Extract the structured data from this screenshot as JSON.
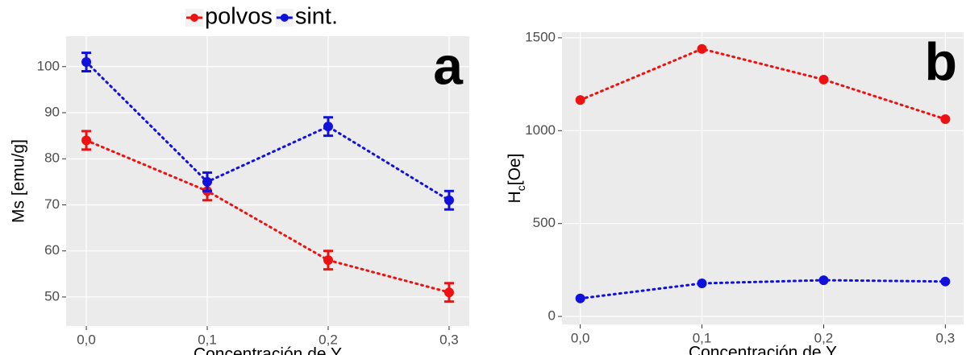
{
  "chart_data": [
    {
      "type": "line",
      "annotation": "a",
      "xlabel": "Concentración de Y",
      "ylabel": "Ms [emu/g]",
      "x": [
        0,
        0.1,
        0.2,
        0.3
      ],
      "series": [
        {
          "name": "polvos",
          "color": "#ee1111",
          "values": [
            84,
            73,
            58,
            51
          ],
          "errors": [
            2,
            2,
            2,
            2
          ]
        },
        {
          "name": "sint.",
          "color": "#1111dd",
          "values": [
            101,
            75,
            87,
            71
          ],
          "errors": [
            2,
            2,
            2,
            2
          ]
        }
      ],
      "xlim": [
        -0.0167,
        0.3167
      ],
      "xticks": [
        {
          "value": 0,
          "label": "0,0"
        },
        {
          "value": 0.1,
          "label": "0,1"
        },
        {
          "value": 0.2,
          "label": "0,2"
        },
        {
          "value": 0.3,
          "label": "0,3"
        }
      ],
      "ylim": [
        43.7,
        106.6
      ],
      "yticks": [
        50,
        60,
        70,
        80,
        90,
        100
      ],
      "grid": true
    },
    {
      "type": "line",
      "annotation": "b",
      "xlabel": "Concentración de Y",
      "ylabel": [
        "H",
        "c",
        "[Oe]"
      ],
      "x": [
        0,
        0.1,
        0.2,
        0.3
      ],
      "series": [
        {
          "color": "#ee1111",
          "values": [
            1165,
            1440,
            1275,
            1062
          ]
        },
        {
          "color": "#1111dd",
          "values": [
            97,
            178,
            195,
            188
          ]
        }
      ],
      "xlim": [
        -0.015,
        0.315
      ],
      "xticks": [
        {
          "value": 0,
          "label": "0,0"
        },
        {
          "value": 0.1,
          "label": "0,1"
        },
        {
          "value": 0.2,
          "label": "0,2"
        },
        {
          "value": 0.3,
          "label": "0,3"
        }
      ],
      "ylim": [
        -43,
        1530
      ],
      "yticks": [
        0,
        500,
        1000,
        1500
      ],
      "grid": true
    }
  ]
}
